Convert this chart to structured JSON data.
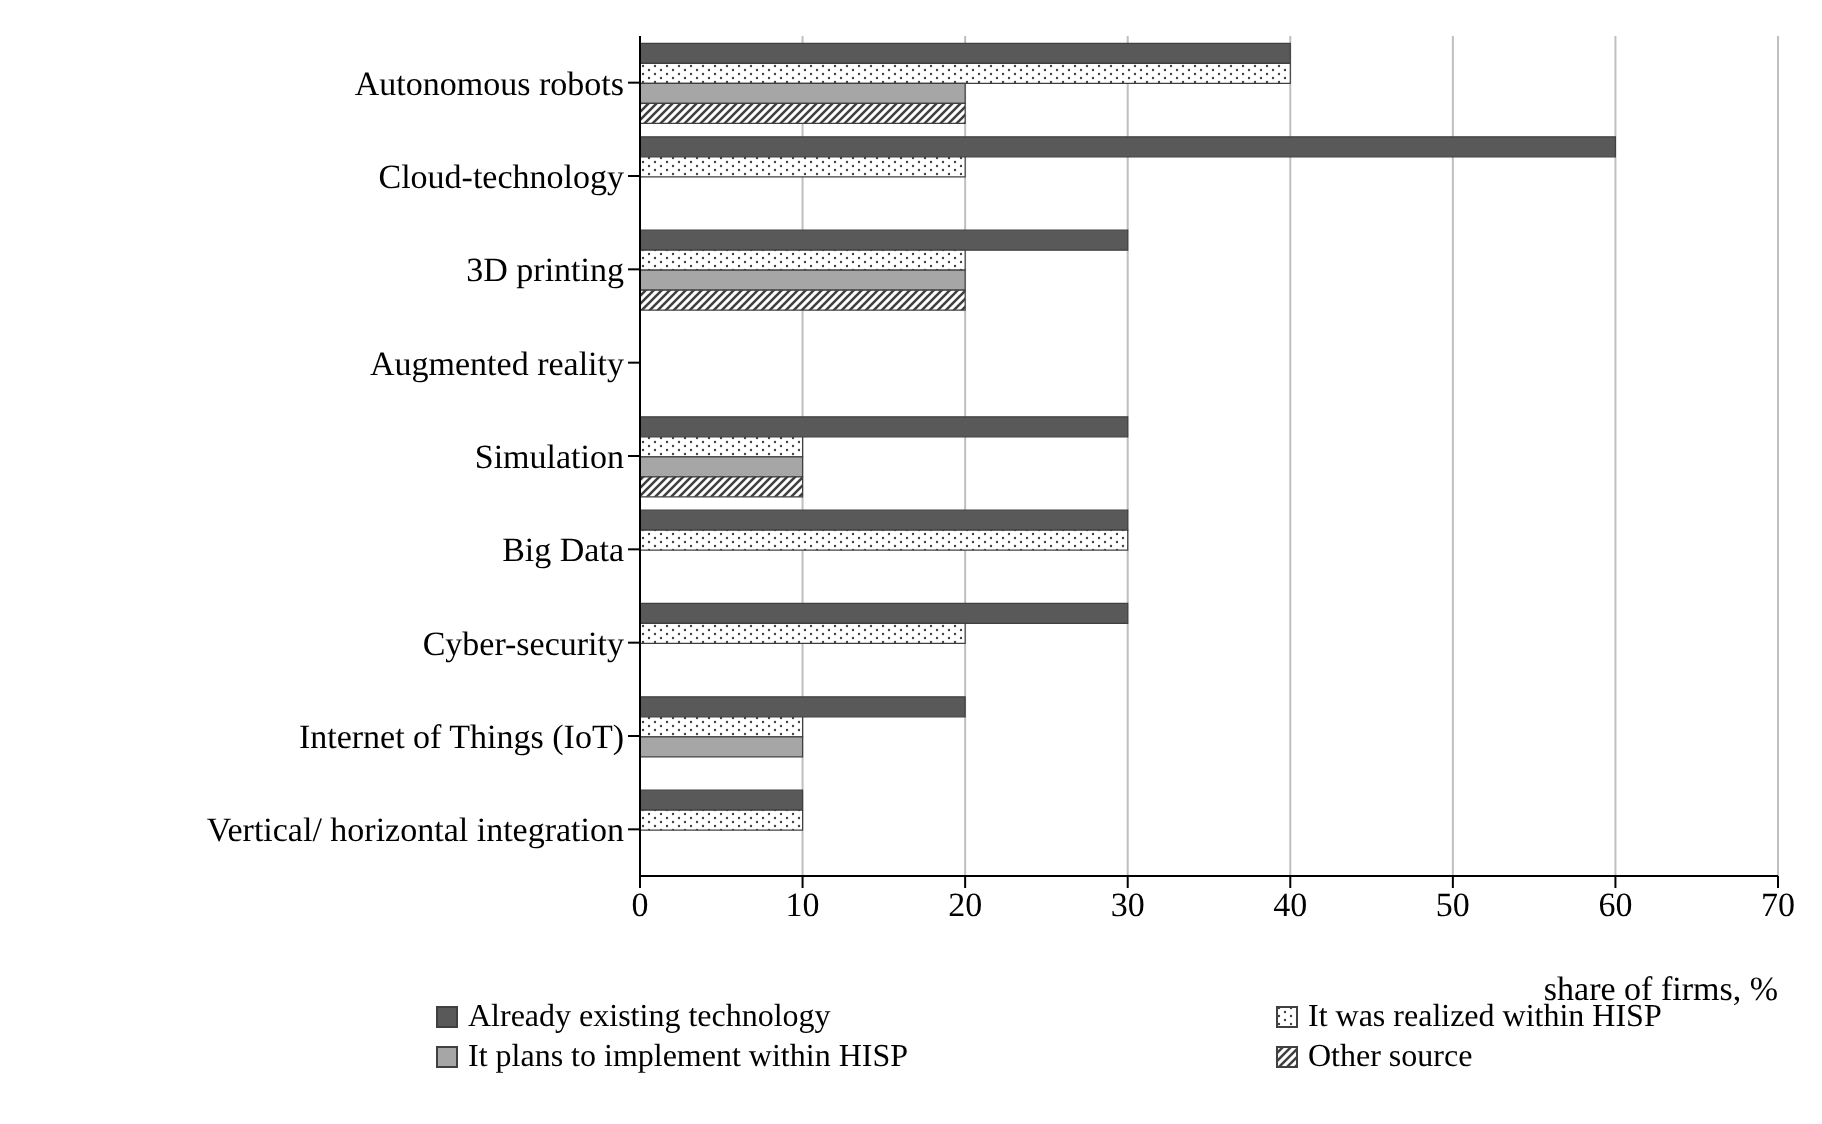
{
  "chart_data": {
    "type": "bar",
    "orientation": "horizontal",
    "xlabel": "share of firms, %",
    "categories": [
      "Autonomous robots",
      "Cloud-technology",
      "3D printing",
      "Augmented reality",
      "Simulation",
      "Big Data",
      "Cyber-security",
      "Internet of Things (IoT)",
      "Vertical/ horizontal integration"
    ],
    "series": [
      {
        "name": "Already existing technology",
        "color": "#595959",
        "values": [
          40,
          60,
          30,
          null,
          30,
          30,
          30,
          20,
          10
        ]
      },
      {
        "name": "It was realized within HISP",
        "color": "#404040",
        "values": [
          40,
          20,
          20,
          null,
          10,
          30,
          20,
          10,
          10
        ]
      },
      {
        "name": "It plans to implement within HISP",
        "color": "#a6a6a6",
        "values": [
          20,
          null,
          20,
          null,
          10,
          null,
          null,
          10,
          null
        ]
      },
      {
        "name": "Other source",
        "color": "#404040",
        "values": [
          20,
          null,
          20,
          null,
          10,
          null,
          null,
          null,
          null
        ]
      }
    ],
    "xlim": [
      0,
      70
    ],
    "xticks": [
      0,
      10,
      20,
      30,
      40,
      50,
      60,
      70
    ],
    "grid": "x",
    "legend": "bottom"
  }
}
